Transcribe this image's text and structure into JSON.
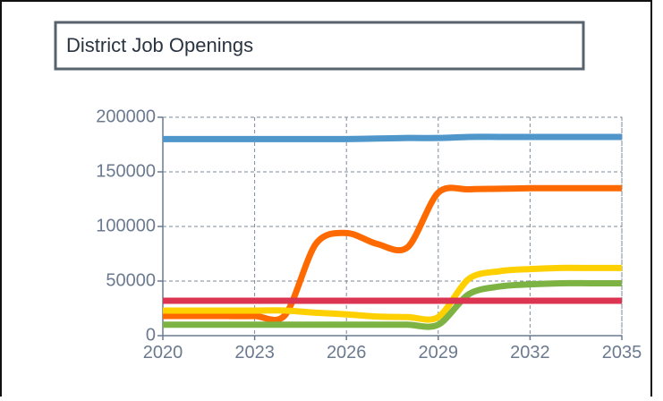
{
  "chart_data": {
    "type": "line",
    "title": "District Job Openings",
    "x": [
      2020,
      2021,
      2022,
      2023,
      2024,
      2025,
      2026,
      2027,
      2028,
      2029,
      2030,
      2031,
      2032,
      2033,
      2034,
      2035
    ],
    "xlim": [
      2020,
      2035
    ],
    "xticks": [
      2020,
      2023,
      2026,
      2029,
      2032,
      2035
    ],
    "ylim": [
      0,
      200000
    ],
    "yticks": [
      0,
      50000,
      100000,
      150000,
      200000
    ],
    "grid": true,
    "series": [
      {
        "color": "#4f97cb",
        "values": [
          180000,
          180000,
          180000,
          180000,
          180000,
          180000,
          180000,
          180500,
          181000,
          181000,
          182000,
          182000,
          182000,
          182000,
          182000,
          182000
        ]
      },
      {
        "color": "#ff6a00",
        "values": [
          18000,
          18000,
          18000,
          18000,
          19000,
          84000,
          94000,
          84000,
          81000,
          131000,
          134000,
          134500,
          135000,
          135000,
          135000,
          135000
        ]
      },
      {
        "color": "#ffd000",
        "values": [
          23000,
          23000,
          23000,
          23000,
          23000,
          21000,
          19500,
          17500,
          17000,
          17000,
          52000,
          59000,
          61000,
          62000,
          62000,
          62000
        ]
      },
      {
        "color": "#7cb342",
        "values": [
          10000,
          10000,
          10000,
          10000,
          10000,
          10000,
          10000,
          10000,
          10000,
          10000,
          38000,
          45000,
          47000,
          48000,
          48000,
          48000
        ]
      },
      {
        "color": "#dc3551",
        "values": [
          32000,
          32000,
          32000,
          32000,
          32000,
          32000,
          32000,
          32000,
          32000,
          32000,
          32000,
          32000,
          32000,
          32000,
          32000,
          32000
        ]
      }
    ]
  }
}
